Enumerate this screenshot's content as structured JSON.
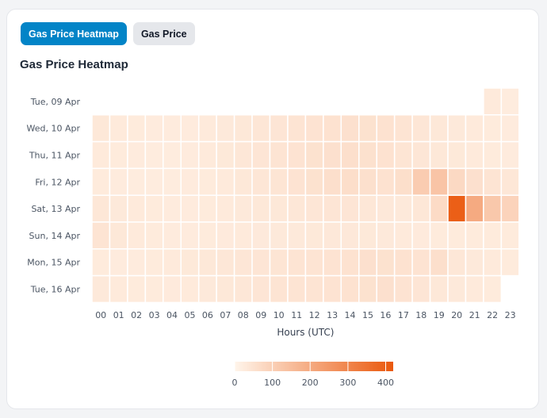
{
  "tabs": [
    {
      "label": "Gas Price Heatmap",
      "active": true
    },
    {
      "label": "Gas Price",
      "active": false
    }
  ],
  "chart_data": {
    "type": "heatmap",
    "title": "Gas Price Heatmap",
    "xlabel": "Hours (UTC)",
    "hours": [
      "00",
      "01",
      "02",
      "03",
      "04",
      "05",
      "06",
      "07",
      "08",
      "09",
      "10",
      "11",
      "12",
      "13",
      "14",
      "15",
      "16",
      "17",
      "18",
      "19",
      "20",
      "21",
      "22",
      "23"
    ],
    "days": [
      "Tue, 09 Apr",
      "Wed, 10 Apr",
      "Thu, 11 Apr",
      "Fri, 12 Apr",
      "Sat, 13 Apr",
      "Sun, 14 Apr",
      "Mon, 15 Apr",
      "Tue, 16 Apr"
    ],
    "values": [
      [
        null,
        null,
        null,
        null,
        null,
        null,
        null,
        null,
        null,
        null,
        null,
        null,
        null,
        null,
        null,
        null,
        null,
        null,
        null,
        null,
        null,
        null,
        30,
        25
      ],
      [
        35,
        30,
        28,
        27,
        26,
        27,
        30,
        32,
        36,
        40,
        42,
        45,
        48,
        50,
        55,
        52,
        50,
        45,
        40,
        35,
        32,
        30,
        28,
        27
      ],
      [
        30,
        28,
        26,
        25,
        25,
        27,
        30,
        33,
        38,
        42,
        45,
        48,
        52,
        55,
        58,
        54,
        50,
        44,
        40,
        36,
        33,
        30,
        28,
        26
      ],
      [
        28,
        26,
        24,
        24,
        25,
        26,
        28,
        30,
        35,
        40,
        44,
        48,
        52,
        58,
        62,
        56,
        50,
        60,
        110,
        130,
        75,
        55,
        45,
        38
      ],
      [
        38,
        32,
        30,
        28,
        27,
        27,
        28,
        30,
        32,
        35,
        36,
        38,
        40,
        42,
        42,
        38,
        34,
        32,
        38,
        70,
        400,
        200,
        120,
        90
      ],
      [
        45,
        36,
        30,
        28,
        27,
        27,
        28,
        29,
        30,
        31,
        32,
        32,
        33,
        34,
        34,
        33,
        32,
        30,
        29,
        28,
        28,
        28,
        28,
        28
      ],
      [
        28,
        27,
        27,
        28,
        30,
        33,
        36,
        38,
        40,
        42,
        44,
        45,
        46,
        48,
        50,
        55,
        52,
        50,
        48,
        58,
        38,
        32,
        30,
        28
      ],
      [
        32,
        30,
        28,
        28,
        29,
        30,
        32,
        35,
        38,
        42,
        45,
        45,
        46,
        48,
        50,
        52,
        55,
        48,
        42,
        36,
        32,
        30,
        28,
        null
      ]
    ],
    "colorscale": {
      "min": 0,
      "max": 420,
      "low_color": "#fff5eb",
      "high_color": "#ea580c"
    },
    "legend_ticks": [
      0,
      100,
      200,
      300,
      400
    ]
  }
}
